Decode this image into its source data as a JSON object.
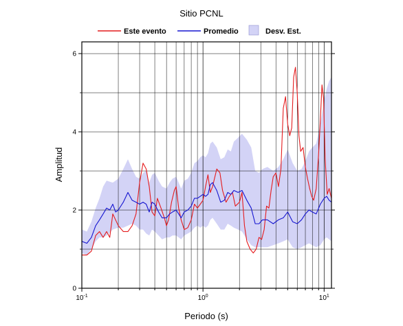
{
  "chart_data": {
    "type": "line",
    "title": "Sitio PCNL",
    "xlabel": "Periodo (s)",
    "ylabel": "Amplitud",
    "xscale": "log",
    "xlim": [
      0.1,
      11.5
    ],
    "ylim": [
      0,
      6.3
    ],
    "grid": true,
    "legend_position": "top",
    "legend": [
      {
        "label": "Este evento",
        "kind": "line",
        "color": "#e41a1c"
      },
      {
        "label": "Promedio",
        "kind": "line",
        "color": "#1515d0"
      },
      {
        "label": "Desv. Est.",
        "kind": "band",
        "color": "#d3d3f6"
      }
    ],
    "x_ticks": [
      {
        "value": 0.1,
        "base": "10",
        "exp": "-1"
      },
      {
        "value": 1,
        "base": "10",
        "exp": "0"
      },
      {
        "value": 10,
        "base": "10",
        "exp": "1"
      }
    ],
    "y_ticks": [
      "0",
      "2",
      "4",
      "6"
    ],
    "series": [
      {
        "name": "Este evento",
        "color": "#e41a1c",
        "points": [
          [
            0.1,
            0.85
          ],
          [
            0.11,
            0.85
          ],
          [
            0.12,
            0.95
          ],
          [
            0.13,
            1.35
          ],
          [
            0.14,
            1.45
          ],
          [
            0.15,
            1.3
          ],
          [
            0.16,
            1.45
          ],
          [
            0.17,
            1.3
          ],
          [
            0.18,
            1.9
          ],
          [
            0.2,
            1.6
          ],
          [
            0.22,
            1.45
          ],
          [
            0.24,
            1.45
          ],
          [
            0.26,
            1.6
          ],
          [
            0.28,
            1.9
          ],
          [
            0.3,
            2.7
          ],
          [
            0.32,
            3.2
          ],
          [
            0.34,
            3.05
          ],
          [
            0.36,
            2.6
          ],
          [
            0.38,
            1.95
          ],
          [
            0.4,
            1.85
          ],
          [
            0.42,
            2.3
          ],
          [
            0.45,
            2.05
          ],
          [
            0.48,
            1.8
          ],
          [
            0.5,
            1.6
          ],
          [
            0.52,
            1.75
          ],
          [
            0.55,
            2.2
          ],
          [
            0.58,
            2.5
          ],
          [
            0.6,
            2.6
          ],
          [
            0.63,
            2.05
          ],
          [
            0.66,
            1.75
          ],
          [
            0.7,
            1.5
          ],
          [
            0.75,
            1.55
          ],
          [
            0.8,
            1.75
          ],
          [
            0.85,
            2.15
          ],
          [
            0.9,
            2.05
          ],
          [
            0.95,
            2.15
          ],
          [
            1.0,
            2.25
          ],
          [
            1.05,
            2.6
          ],
          [
            1.1,
            2.9
          ],
          [
            1.15,
            2.45
          ],
          [
            1.2,
            2.6
          ],
          [
            1.3,
            3.05
          ],
          [
            1.38,
            2.95
          ],
          [
            1.45,
            2.5
          ],
          [
            1.55,
            2.2
          ],
          [
            1.65,
            2.35
          ],
          [
            1.75,
            2.45
          ],
          [
            1.85,
            2.1
          ],
          [
            2.0,
            2.2
          ],
          [
            2.1,
            2.45
          ],
          [
            2.2,
            1.6
          ],
          [
            2.3,
            1.2
          ],
          [
            2.45,
            1.0
          ],
          [
            2.6,
            0.9
          ],
          [
            2.75,
            1.0
          ],
          [
            2.9,
            1.3
          ],
          [
            3.05,
            1.25
          ],
          [
            3.2,
            1.5
          ],
          [
            3.35,
            2.1
          ],
          [
            3.5,
            2.05
          ],
          [
            3.65,
            2.5
          ],
          [
            3.8,
            2.85
          ],
          [
            4.0,
            2.95
          ],
          [
            4.2,
            2.6
          ],
          [
            4.4,
            3.05
          ],
          [
            4.6,
            4.6
          ],
          [
            4.8,
            4.9
          ],
          [
            5.0,
            4.2
          ],
          [
            5.2,
            3.9
          ],
          [
            5.4,
            4.1
          ],
          [
            5.6,
            5.4
          ],
          [
            5.8,
            5.65
          ],
          [
            6.0,
            5.0
          ],
          [
            6.2,
            3.9
          ],
          [
            6.4,
            3.5
          ],
          [
            6.7,
            3.6
          ],
          [
            7.0,
            3.1
          ],
          [
            7.3,
            2.8
          ],
          [
            7.6,
            2.55
          ],
          [
            7.9,
            2.35
          ],
          [
            8.2,
            2.25
          ],
          [
            8.6,
            2.55
          ],
          [
            9.0,
            3.4
          ],
          [
            9.3,
            4.3
          ],
          [
            9.6,
            5.2
          ],
          [
            9.9,
            4.85
          ],
          [
            10.2,
            3.3
          ],
          [
            10.6,
            2.4
          ],
          [
            11.0,
            2.55
          ],
          [
            11.5,
            2.3
          ]
        ]
      },
      {
        "name": "Promedio",
        "color": "#1515d0",
        "points": [
          [
            0.1,
            1.2
          ],
          [
            0.11,
            1.15
          ],
          [
            0.12,
            1.3
          ],
          [
            0.13,
            1.6
          ],
          [
            0.14,
            1.75
          ],
          [
            0.15,
            1.9
          ],
          [
            0.16,
            2.05
          ],
          [
            0.17,
            2.0
          ],
          [
            0.18,
            2.15
          ],
          [
            0.19,
            1.95
          ],
          [
            0.2,
            2.0
          ],
          [
            0.22,
            2.2
          ],
          [
            0.24,
            2.45
          ],
          [
            0.26,
            2.25
          ],
          [
            0.28,
            2.2
          ],
          [
            0.3,
            2.15
          ],
          [
            0.32,
            2.2
          ],
          [
            0.34,
            2.15
          ],
          [
            0.36,
            1.95
          ],
          [
            0.38,
            2.2
          ],
          [
            0.4,
            2.15
          ],
          [
            0.43,
            1.95
          ],
          [
            0.46,
            1.8
          ],
          [
            0.5,
            1.8
          ],
          [
            0.53,
            1.9
          ],
          [
            0.56,
            1.95
          ],
          [
            0.6,
            2.0
          ],
          [
            0.63,
            1.9
          ],
          [
            0.66,
            1.8
          ],
          [
            0.7,
            1.95
          ],
          [
            0.75,
            2.0
          ],
          [
            0.8,
            2.1
          ],
          [
            0.85,
            2.3
          ],
          [
            0.9,
            2.3
          ],
          [
            0.95,
            2.35
          ],
          [
            1.0,
            2.4
          ],
          [
            1.05,
            2.35
          ],
          [
            1.1,
            2.4
          ],
          [
            1.15,
            2.65
          ],
          [
            1.2,
            2.7
          ],
          [
            1.3,
            2.5
          ],
          [
            1.4,
            2.2
          ],
          [
            1.5,
            2.25
          ],
          [
            1.6,
            2.45
          ],
          [
            1.7,
            2.4
          ],
          [
            1.8,
            2.5
          ],
          [
            1.95,
            2.45
          ],
          [
            2.1,
            2.5
          ],
          [
            2.3,
            2.25
          ],
          [
            2.5,
            2.05
          ],
          [
            2.7,
            1.65
          ],
          [
            2.9,
            1.65
          ],
          [
            3.1,
            1.75
          ],
          [
            3.4,
            1.75
          ],
          [
            3.8,
            1.65
          ],
          [
            4.2,
            1.75
          ],
          [
            4.6,
            1.8
          ],
          [
            5.0,
            1.95
          ],
          [
            5.5,
            1.7
          ],
          [
            6.0,
            1.65
          ],
          [
            6.5,
            1.75
          ],
          [
            7.0,
            1.9
          ],
          [
            7.5,
            2.0
          ],
          [
            8.0,
            1.95
          ],
          [
            8.6,
            1.9
          ],
          [
            9.3,
            2.15
          ],
          [
            10.0,
            2.3
          ],
          [
            10.5,
            2.35
          ],
          [
            11.0,
            2.25
          ],
          [
            11.5,
            2.2
          ]
        ]
      }
    ],
    "band": {
      "name": "Desv. Est.",
      "color": "#d3d3f6",
      "points": [
        [
          0.1,
          1.5,
          0.9
        ],
        [
          0.11,
          1.45,
          0.85
        ],
        [
          0.12,
          1.7,
          1.0
        ],
        [
          0.13,
          2.05,
          1.2
        ],
        [
          0.14,
          2.3,
          1.3
        ],
        [
          0.15,
          2.6,
          1.3
        ],
        [
          0.16,
          2.75,
          1.35
        ],
        [
          0.18,
          2.7,
          1.5
        ],
        [
          0.2,
          2.8,
          1.55
        ],
        [
          0.22,
          3.05,
          1.55
        ],
        [
          0.24,
          3.3,
          1.6
        ],
        [
          0.26,
          3.05,
          1.65
        ],
        [
          0.28,
          2.85,
          1.6
        ],
        [
          0.3,
          2.8,
          1.5
        ],
        [
          0.32,
          2.95,
          1.5
        ],
        [
          0.34,
          3.0,
          1.4
        ],
        [
          0.36,
          2.7,
          1.35
        ],
        [
          0.38,
          2.9,
          1.5
        ],
        [
          0.4,
          2.95,
          1.45
        ],
        [
          0.43,
          2.75,
          1.35
        ],
        [
          0.46,
          2.6,
          1.25
        ],
        [
          0.5,
          2.55,
          1.3
        ],
        [
          0.53,
          2.7,
          1.3
        ],
        [
          0.56,
          2.8,
          1.35
        ],
        [
          0.6,
          2.85,
          1.35
        ],
        [
          0.63,
          2.7,
          1.3
        ],
        [
          0.66,
          2.55,
          1.25
        ],
        [
          0.7,
          2.75,
          1.35
        ],
        [
          0.75,
          2.8,
          1.4
        ],
        [
          0.8,
          2.95,
          1.45
        ],
        [
          0.85,
          3.2,
          1.55
        ],
        [
          0.9,
          3.25,
          1.6
        ],
        [
          0.95,
          3.35,
          1.55
        ],
        [
          1.0,
          3.4,
          1.6
        ],
        [
          1.05,
          3.35,
          1.55
        ],
        [
          1.1,
          3.45,
          1.6
        ],
        [
          1.15,
          3.7,
          1.75
        ],
        [
          1.2,
          3.75,
          1.8
        ],
        [
          1.3,
          3.6,
          1.65
        ],
        [
          1.4,
          3.3,
          1.5
        ],
        [
          1.5,
          3.35,
          1.5
        ],
        [
          1.6,
          3.55,
          1.65
        ],
        [
          1.7,
          3.5,
          1.6
        ],
        [
          1.8,
          3.75,
          1.55
        ],
        [
          1.95,
          3.85,
          1.5
        ],
        [
          2.1,
          3.95,
          1.45
        ],
        [
          2.3,
          3.8,
          1.25
        ],
        [
          2.5,
          3.6,
          1.1
        ],
        [
          2.7,
          3.0,
          1.05
        ],
        [
          2.9,
          2.95,
          1.05
        ],
        [
          3.1,
          3.05,
          1.05
        ],
        [
          3.4,
          3.1,
          1.05
        ],
        [
          3.8,
          3.0,
          1.1
        ],
        [
          4.2,
          3.1,
          1.15
        ],
        [
          4.6,
          3.3,
          1.2
        ],
        [
          5.0,
          3.55,
          1.25
        ],
        [
          5.5,
          3.2,
          1.05
        ],
        [
          6.0,
          3.0,
          1.0
        ],
        [
          6.5,
          3.05,
          1.05
        ],
        [
          7.0,
          3.25,
          1.1
        ],
        [
          7.5,
          3.5,
          1.15
        ],
        [
          8.0,
          3.6,
          1.1
        ],
        [
          8.6,
          3.7,
          1.05
        ],
        [
          9.3,
          4.2,
          1.1
        ],
        [
          10.0,
          4.8,
          1.25
        ],
        [
          10.5,
          5.1,
          1.3
        ],
        [
          11.0,
          5.3,
          1.25
        ],
        [
          11.5,
          5.4,
          1.2
        ]
      ]
    }
  }
}
